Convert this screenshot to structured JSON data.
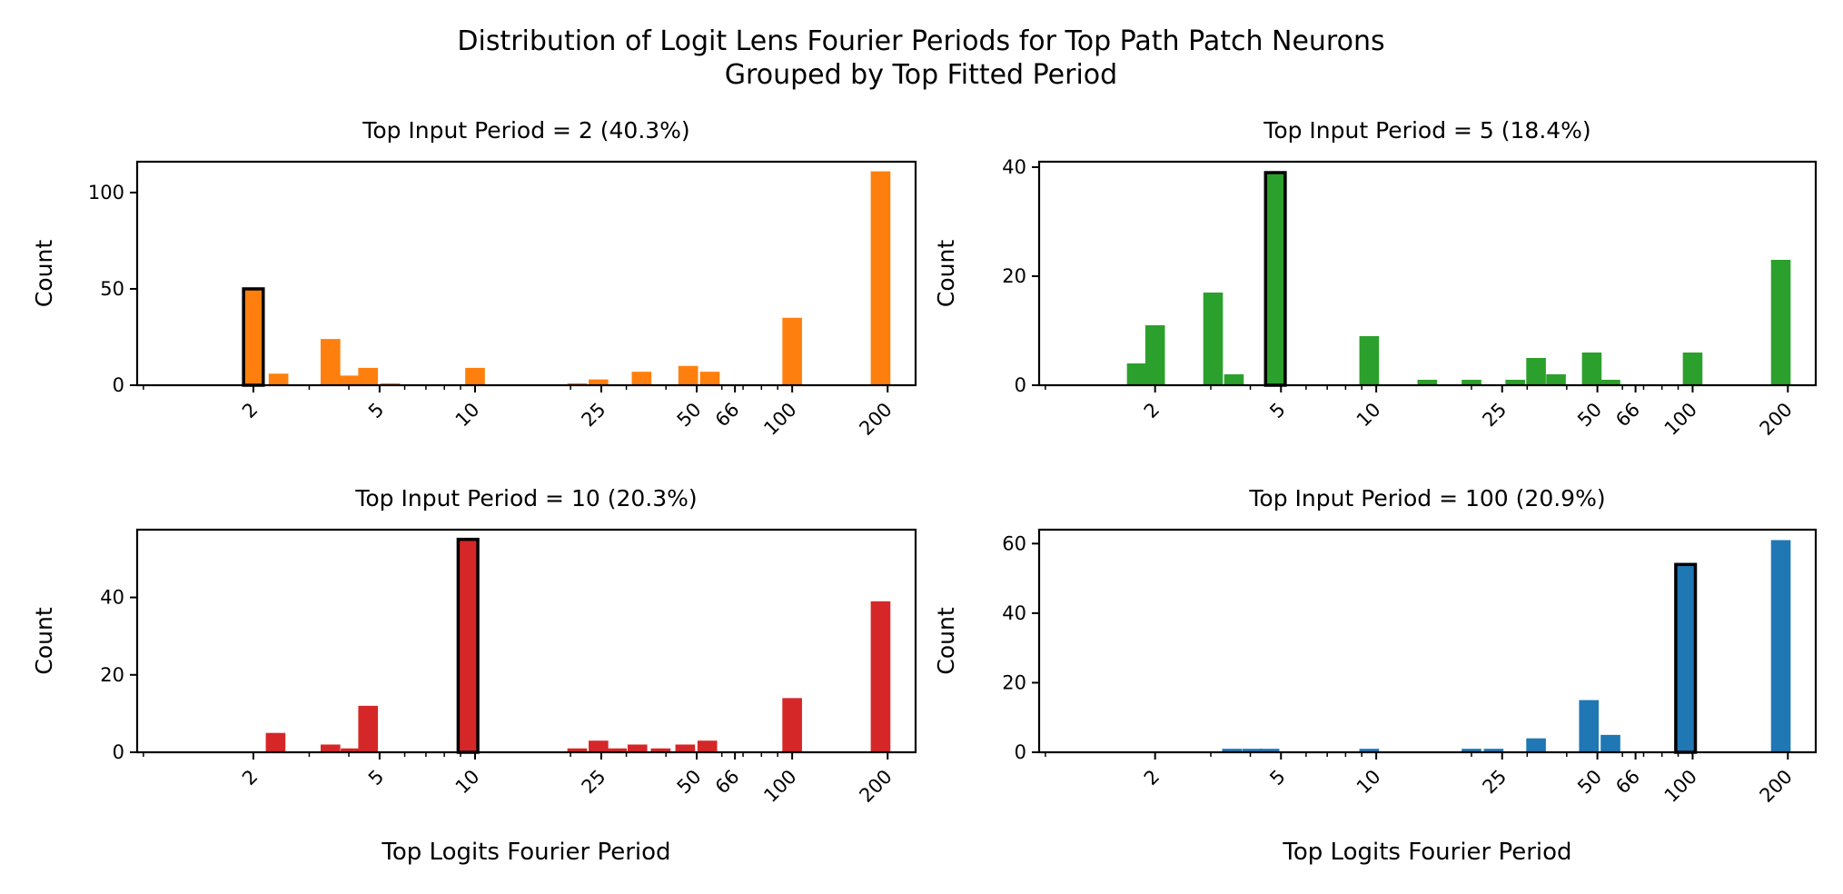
{
  "figure": {
    "title_line1": "Distribution of Logit Lens Fourier Periods for Top Path Patch Neurons",
    "title_line2": "Grouped by Top Fitted Period"
  },
  "chart_data": [
    {
      "type": "bar",
      "title": "Top Input Period = 2 (40.3%)",
      "ylabel": "Count",
      "xlabel": "",
      "xscale": "log",
      "xlim": [
        0.86,
        245
      ],
      "ylim": [
        0,
        116
      ],
      "yticks": [
        0,
        50,
        100
      ],
      "xticks": [
        2,
        5,
        10,
        25,
        50,
        66,
        100,
        200
      ],
      "xtick_labels": [
        "2",
        "5",
        "10",
        "25",
        "50",
        "66",
        "100",
        "200"
      ],
      "color": "#ff7f0e",
      "bars": [
        {
          "x": 2,
          "count": 50,
          "highlight": true
        },
        {
          "x": 2.4,
          "count": 6
        },
        {
          "x": 3.5,
          "count": 24
        },
        {
          "x": 4,
          "count": 5
        },
        {
          "x": 4.6,
          "count": 9
        },
        {
          "x": 5.4,
          "count": 1
        },
        {
          "x": 10,
          "count": 9
        },
        {
          "x": 21,
          "count": 1
        },
        {
          "x": 24.5,
          "count": 3
        },
        {
          "x": 33.5,
          "count": 7
        },
        {
          "x": 47,
          "count": 10
        },
        {
          "x": 55,
          "count": 7
        },
        {
          "x": 100,
          "count": 35
        },
        {
          "x": 190,
          "count": 111
        }
      ]
    },
    {
      "type": "bar",
      "title": "Top Input Period = 5 (18.4%)",
      "ylabel": "Count",
      "xlabel": "",
      "xscale": "log",
      "xlim": [
        0.86,
        245
      ],
      "ylim": [
        0,
        41
      ],
      "yticks": [
        0,
        20,
        40
      ],
      "xticks": [
        2,
        5,
        10,
        25,
        50,
        66,
        100,
        200
      ],
      "xtick_labels": [
        "2",
        "5",
        "10",
        "25",
        "50",
        "66",
        "100",
        "200"
      ],
      "color": "#2ca02c",
      "bars": [
        {
          "x": 1.75,
          "count": 4
        },
        {
          "x": 2,
          "count": 11
        },
        {
          "x": 3.05,
          "count": 17
        },
        {
          "x": 3.55,
          "count": 2
        },
        {
          "x": 4.8,
          "count": 39,
          "highlight": true
        },
        {
          "x": 9.5,
          "count": 9
        },
        {
          "x": 14.5,
          "count": 1
        },
        {
          "x": 20,
          "count": 1
        },
        {
          "x": 27.5,
          "count": 1
        },
        {
          "x": 32,
          "count": 5
        },
        {
          "x": 37,
          "count": 2
        },
        {
          "x": 48,
          "count": 6
        },
        {
          "x": 55,
          "count": 1
        },
        {
          "x": 100,
          "count": 6
        },
        {
          "x": 190,
          "count": 23
        }
      ]
    },
    {
      "type": "bar",
      "title": "Top Input Period = 10 (20.3%)",
      "ylabel": "Count",
      "xlabel": "Top Logits Fourier Period",
      "xscale": "log",
      "xlim": [
        0.86,
        245
      ],
      "ylim": [
        0,
        57.5
      ],
      "yticks": [
        0,
        20,
        40
      ],
      "xticks": [
        2,
        5,
        10,
        25,
        50,
        66,
        100,
        200
      ],
      "xtick_labels": [
        "2",
        "5",
        "10",
        "25",
        "50",
        "66",
        "100",
        "200"
      ],
      "color": "#d62728",
      "bars": [
        {
          "x": 2.35,
          "count": 5
        },
        {
          "x": 3.5,
          "count": 2
        },
        {
          "x": 4.05,
          "count": 1
        },
        {
          "x": 4.6,
          "count": 12
        },
        {
          "x": 9.5,
          "count": 55,
          "highlight": true
        },
        {
          "x": 21,
          "count": 1
        },
        {
          "x": 24.5,
          "count": 3
        },
        {
          "x": 28,
          "count": 1
        },
        {
          "x": 32.5,
          "count": 2
        },
        {
          "x": 38.5,
          "count": 1
        },
        {
          "x": 46,
          "count": 2
        },
        {
          "x": 54,
          "count": 3
        },
        {
          "x": 100,
          "count": 14
        },
        {
          "x": 190,
          "count": 39
        }
      ]
    },
    {
      "type": "bar",
      "title": "Top Input Period = 100 (20.9%)",
      "ylabel": "Count",
      "xlabel": "Top Logits Fourier Period",
      "xscale": "log",
      "xlim": [
        0.86,
        245
      ],
      "ylim": [
        0,
        64
      ],
      "yticks": [
        0,
        20,
        40,
        60
      ],
      "xticks": [
        2,
        5,
        10,
        25,
        50,
        66,
        100,
        200
      ],
      "xtick_labels": [
        "2",
        "5",
        "10",
        "25",
        "50",
        "66",
        "100",
        "200"
      ],
      "color": "#1f77b4",
      "bars": [
        {
          "x": 3.5,
          "count": 1
        },
        {
          "x": 4.05,
          "count": 1
        },
        {
          "x": 4.6,
          "count": 1
        },
        {
          "x": 9.5,
          "count": 1
        },
        {
          "x": 20,
          "count": 1
        },
        {
          "x": 23.5,
          "count": 1
        },
        {
          "x": 32,
          "count": 4
        },
        {
          "x": 47,
          "count": 15
        },
        {
          "x": 55,
          "count": 5
        },
        {
          "x": 95,
          "count": 54,
          "highlight": true
        },
        {
          "x": 190,
          "count": 61
        }
      ]
    }
  ]
}
